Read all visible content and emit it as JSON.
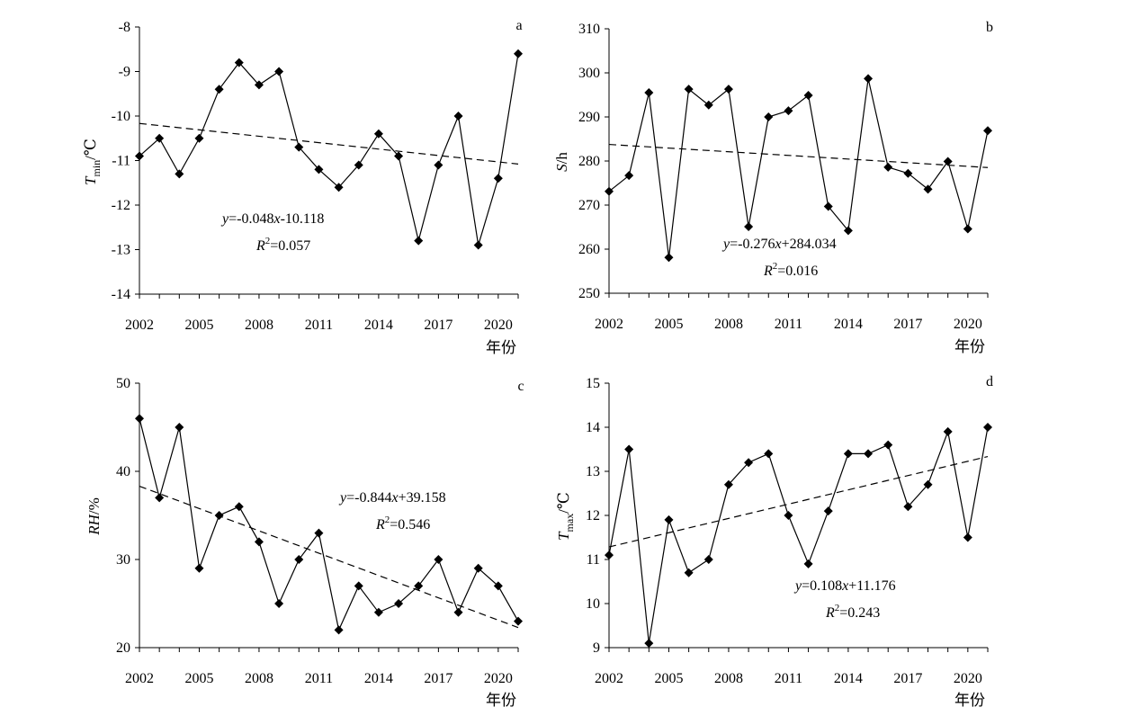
{
  "chart_data": [
    {
      "type": "line",
      "panel": "a",
      "ylabel": "T_min/℃",
      "ylabel_main": "T",
      "ylabel_sub": "min",
      "ylabel_unit": "/℃",
      "xlabel": "年份",
      "xlim": [
        2002,
        2021
      ],
      "ylim": [
        -14,
        -8
      ],
      "xticks": [
        "2002",
        "2005",
        "2008",
        "2011",
        "2014",
        "2017",
        "2020"
      ],
      "yticks": [
        "-14",
        "-13",
        "-12",
        "-11",
        "-10",
        "-9",
        "-8"
      ],
      "x": [
        2002,
        2003,
        2004,
        2005,
        2006,
        2007,
        2008,
        2009,
        2010,
        2011,
        2012,
        2013,
        2014,
        2015,
        2016,
        2017,
        2018,
        2019,
        2020,
        2021
      ],
      "values": [
        -10.9,
        -10.5,
        -11.3,
        -10.5,
        -9.4,
        -8.8,
        -9.3,
        -9.0,
        -10.7,
        -11.2,
        -11.6,
        -11.1,
        -10.4,
        -10.9,
        -12.8,
        -11.1,
        -10.0,
        -12.9,
        -11.4,
        -8.6
      ],
      "trend": {
        "slope": -0.048,
        "intercept": -10.118
      },
      "equation": {
        "y": "y",
        "eq": "=-0.048",
        "x": "x",
        "rest": "-10.118",
        "r2": "R",
        "r2_exp": "2",
        "r2_value": "=0.057"
      }
    },
    {
      "type": "line",
      "panel": "b",
      "ylabel": "S/h",
      "ylabel_main": "S",
      "ylabel_sub": "",
      "ylabel_unit": "/h",
      "xlabel": "年份",
      "xlim": [
        2002,
        2021
      ],
      "ylim": [
        250,
        310
      ],
      "xticks": [
        "2002",
        "2005",
        "2008",
        "2011",
        "2014",
        "2017",
        "2020"
      ],
      "yticks": [
        "250",
        "260",
        "270",
        "280",
        "290",
        "300",
        "310"
      ],
      "x": [
        2002,
        2003,
        2004,
        2005,
        2006,
        2007,
        2008,
        2009,
        2010,
        2011,
        2012,
        2013,
        2014,
        2015,
        2016,
        2017,
        2018,
        2019,
        2020,
        2021
      ],
      "values": [
        273.1,
        276.7,
        295.5,
        258.1,
        296.3,
        292.7,
        296.3,
        265.1,
        290.0,
        291.4,
        294.9,
        269.7,
        264.2,
        298.7,
        278.6,
        277.2,
        273.6,
        279.9,
        264.6,
        286.9
      ],
      "trend": {
        "slope": -0.276,
        "intercept": 284.034
      },
      "equation": {
        "y": "y",
        "eq": "=-0.276",
        "x": "x",
        "rest": "+284.034",
        "r2": "R",
        "r2_exp": "2",
        "r2_value": "=0.016"
      }
    },
    {
      "type": "line",
      "panel": "c",
      "ylabel": "RH/%",
      "ylabel_main": "RH",
      "ylabel_sub": "",
      "ylabel_unit": "/%",
      "xlabel": "年份",
      "xlim": [
        2002,
        2021
      ],
      "ylim": [
        20,
        50
      ],
      "xticks": [
        "2002",
        "2005",
        "2008",
        "2011",
        "2014",
        "2017",
        "2020"
      ],
      "yticks": [
        "20",
        "30",
        "40",
        "50"
      ],
      "x": [
        2002,
        2003,
        2004,
        2005,
        2006,
        2007,
        2008,
        2009,
        2010,
        2011,
        2012,
        2013,
        2014,
        2015,
        2016,
        2017,
        2018,
        2019,
        2020,
        2021
      ],
      "values": [
        46,
        37,
        45,
        29,
        35,
        36,
        32,
        25,
        30,
        33,
        22,
        27,
        24,
        25,
        27,
        30,
        24,
        29,
        27,
        23
      ],
      "trend": {
        "slope": -0.844,
        "intercept": 39.158
      },
      "equation": {
        "y": "y",
        "eq": "=-0.844",
        "x": "x",
        "rest": "+39.158",
        "r2": "R",
        "r2_exp": "2",
        "r2_value": "=0.546"
      }
    },
    {
      "type": "line",
      "panel": "d",
      "ylabel": "T_max/℃",
      "ylabel_main": "T",
      "ylabel_sub": "max",
      "ylabel_unit": "/℃",
      "xlabel": "年份",
      "xlim": [
        2002,
        2021
      ],
      "ylim": [
        9,
        15
      ],
      "xticks": [
        "2002",
        "2005",
        "2008",
        "2011",
        "2014",
        "2017",
        "2020"
      ],
      "yticks": [
        "9",
        "10",
        "11",
        "12",
        "13",
        "14",
        "15"
      ],
      "x": [
        2002,
        2003,
        2004,
        2005,
        2006,
        2007,
        2008,
        2009,
        2010,
        2011,
        2012,
        2013,
        2014,
        2015,
        2016,
        2017,
        2018,
        2019,
        2020,
        2021
      ],
      "values": [
        11.1,
        13.5,
        9.1,
        11.9,
        10.7,
        11.0,
        12.7,
        13.2,
        13.4,
        12.0,
        10.9,
        12.1,
        13.4,
        13.4,
        13.6,
        12.2,
        12.7,
        13.9,
        11.5,
        14.0
      ],
      "trend": {
        "slope": 0.108,
        "intercept": 11.176
      },
      "equation": {
        "y": "y",
        "eq": "=0.108",
        "x": "x",
        "rest": "+11.176",
        "r2": "R",
        "r2_exp": "2",
        "r2_value": "=0.243"
      }
    }
  ]
}
